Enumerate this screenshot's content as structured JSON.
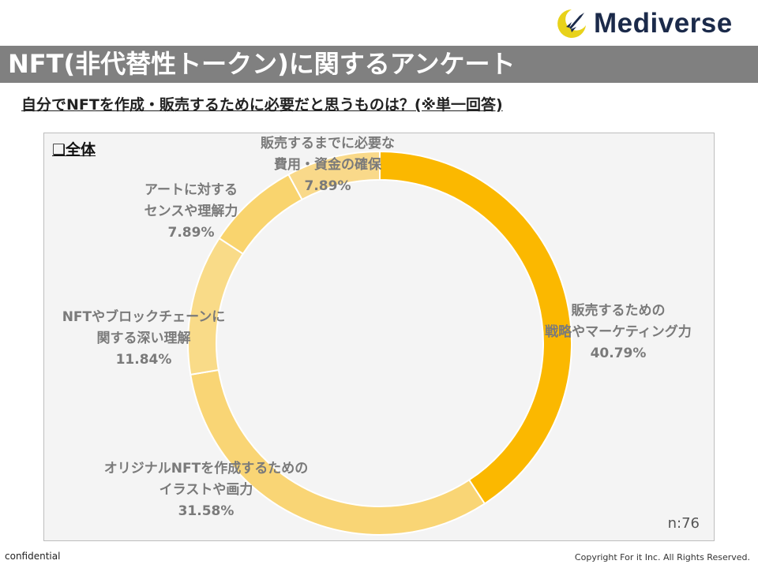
{
  "header": {
    "logo_text": "Mediverse",
    "logo_icon": "rocket-crescent-icon",
    "title": "NFT(非代替性トークン)に関するアンケート"
  },
  "question": "自分でNFTを作成・販売するために必要だと思うものは？(※単一回答)",
  "section_label": "❑全体",
  "sample_size": "n:76",
  "footer": {
    "left": "confidential",
    "right": "Copyright For it Inc. All Rights Reserved."
  },
  "colors": {
    "title_bar": "#808080",
    "slice_primary": "#fbb800",
    "slice_light": "#f9d575",
    "label_text": "#7a7a7a"
  },
  "chart_data": {
    "type": "pie",
    "variant": "donut",
    "title": "自分でNFTを作成・販売するために必要だと思うものは？(※単一回答)",
    "start": "12 o'clock, clockwise",
    "slices": [
      {
        "label_lines": [
          "販売するための",
          "戦略やマーケティング力"
        ],
        "value": 40.79,
        "value_label": "40.79%",
        "color": "#fbb800"
      },
      {
        "label_lines": [
          "オリジナルNFTを作成するための",
          "イラストや画力"
        ],
        "value": 31.58,
        "value_label": "31.58%",
        "color": "#f9d575"
      },
      {
        "label_lines": [
          "NFTやブロックチェーンに",
          "関する深い理解"
        ],
        "value": 11.84,
        "value_label": "11.84%",
        "color": "#f9db88"
      },
      {
        "label_lines": [
          "アートに対する",
          "センスや理解力"
        ],
        "value": 7.89,
        "value_label": "7.89%",
        "color": "#f9d46e"
      },
      {
        "label_lines": [
          "販売するまでに必要な",
          "費用・資金の確保"
        ],
        "value": 7.89,
        "value_label": "7.89%",
        "color": "#f9d98a"
      }
    ]
  }
}
